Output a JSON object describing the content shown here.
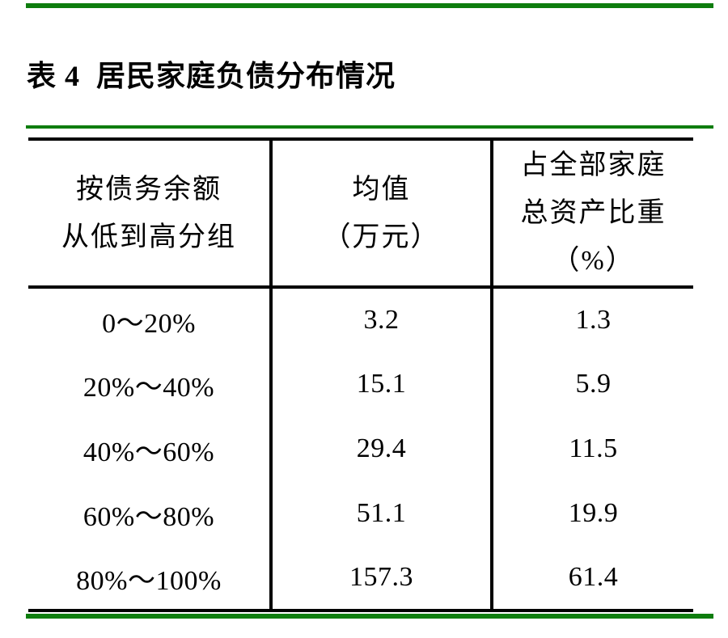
{
  "title": "表 4  居民家庭负债分布情况",
  "colors": {
    "rule_green": "#0e7d0e",
    "table_border": "#000000",
    "text": "#000000",
    "background": "#ffffff"
  },
  "table": {
    "headers": [
      {
        "lines": [
          "按债务余额",
          "从低到高分组"
        ]
      },
      {
        "lines": [
          "均值",
          "（万元）"
        ]
      },
      {
        "lines": [
          "占全部家庭",
          "总资产比重",
          "（%）"
        ]
      }
    ],
    "rows": [
      {
        "group": "0～20%",
        "mean": "3.2",
        "share": "1.3"
      },
      {
        "group": "20%～40%",
        "mean": "15.1",
        "share": "5.9"
      },
      {
        "group": "40%～60%",
        "mean": "29.4",
        "share": "11.5"
      },
      {
        "group": "60%～80%",
        "mean": "51.1",
        "share": "19.9"
      },
      {
        "group": "80%～100%",
        "mean": "157.3",
        "share": "61.4"
      }
    ]
  }
}
